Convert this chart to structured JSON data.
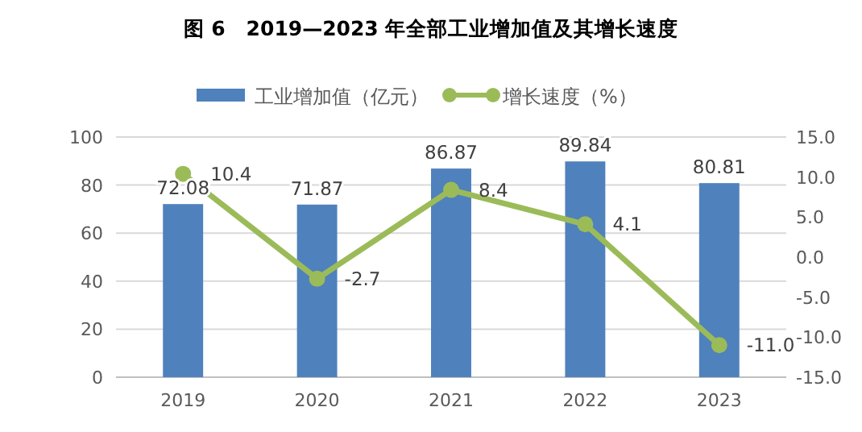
{
  "chart_data": {
    "type": "bar",
    "title": "图 6　2019—2023 年全部工业增加值及其增长速度",
    "categories": [
      "2019",
      "2020",
      "2021",
      "2022",
      "2023"
    ],
    "series": [
      {
        "name": "工业增加值（亿元）",
        "color": "#4f81bd",
        "values": [
          72.08,
          71.87,
          86.87,
          89.84,
          80.81
        ],
        "value_labels": [
          "72.08",
          "71.87",
          "86.87",
          "89.84",
          "80.81"
        ]
      },
      {
        "name": "增长速度（%）",
        "type": "line",
        "axis": "y2",
        "color": "#9bbb59",
        "values": [
          10.4,
          -2.7,
          8.4,
          4.1,
          -11.0
        ],
        "value_labels": [
          "10.4",
          "-2.7",
          "8.4",
          "4.1",
          "-11.0"
        ]
      }
    ],
    "ylim": [
      0,
      100
    ],
    "yticks": [
      0,
      20,
      40,
      60,
      80,
      100
    ],
    "y2lim": [
      -15,
      15
    ],
    "y2ticks": [
      {
        "value": -15,
        "label": "-15.0"
      },
      {
        "value": -10,
        "label": "-10.0"
      },
      {
        "value": -5,
        "label": "-5.0"
      },
      {
        "value": 0,
        "label": "0.0"
      },
      {
        "value": 5,
        "label": "5.0"
      },
      {
        "value": 10,
        "label": "10.0"
      },
      {
        "value": 15,
        "label": "15.0"
      }
    ],
    "grid": "y",
    "legend": "top",
    "marker": "circle",
    "line_style": "solid"
  }
}
